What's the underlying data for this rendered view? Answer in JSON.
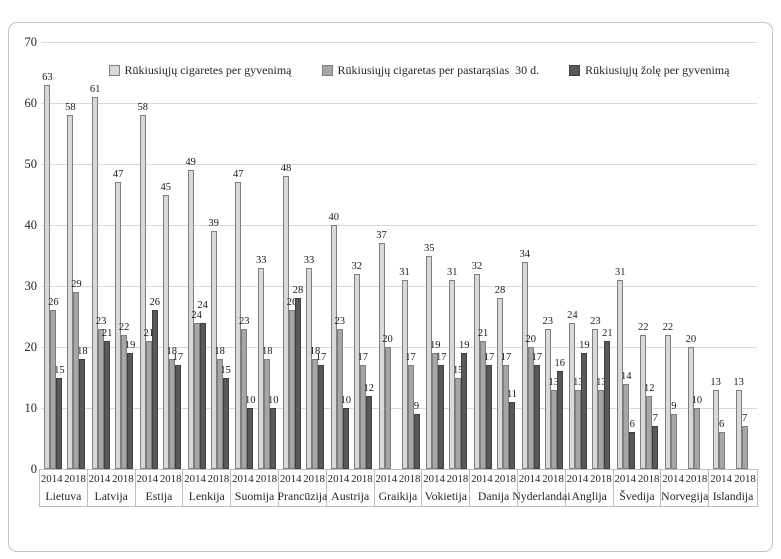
{
  "figure": {
    "background_color": "#ffffff",
    "frame_border_color": "#c3c3c3",
    "gridline_color": "#d9d9d9",
    "axis_line_color": "#bfbfbf",
    "text_color": "#262626"
  },
  "chart_data": {
    "type": "bar",
    "title": "",
    "xlabel": "",
    "ylabel": "",
    "ylim": [
      0,
      70
    ],
    "yticks": [
      0,
      10,
      20,
      30,
      40,
      50,
      60,
      70
    ],
    "grid": "horizontal",
    "legend_position": "top-center-inside",
    "data_labels": true,
    "year_labels": [
      "2014",
      "2018"
    ],
    "series": [
      {
        "name": "Rūkiusiųjų cigaretes per gyvenimą",
        "fill": "#d9d9d9",
        "border": "#7f7f7f"
      },
      {
        "name": "Rūkiusiųjų cigaretas per pastarąsias  30 d.",
        "fill": "#a6a6a6",
        "border": "#7f7f7f"
      },
      {
        "name": "Rūkiusiųjų žolę per gyvenimą",
        "fill": "#595959",
        "border": "#3f3f3f"
      }
    ],
    "countries": [
      {
        "name": "Lietuva",
        "values_2014": [
          63,
          26,
          15
        ],
        "values_2018": [
          58,
          29,
          18
        ]
      },
      {
        "name": "Latvija",
        "values_2014": [
          61,
          23,
          21
        ],
        "values_2018": [
          47,
          22,
          19
        ]
      },
      {
        "name": "Estija",
        "values_2014": [
          58,
          21,
          26
        ],
        "values_2018": [
          45,
          18,
          17
        ]
      },
      {
        "name": "Lenkija",
        "values_2014": [
          49,
          24,
          24
        ],
        "values_2018": [
          39,
          18,
          15
        ]
      },
      {
        "name": "Suomija",
        "values_2014": [
          47,
          23,
          10
        ],
        "values_2018": [
          33,
          18,
          10
        ]
      },
      {
        "name": "Prancūzija",
        "values_2014": [
          48,
          26,
          28
        ],
        "values_2018": [
          33,
          18,
          17
        ]
      },
      {
        "name": "Austrija",
        "values_2014": [
          40,
          23,
          10
        ],
        "values_2018": [
          32,
          17,
          12
        ]
      },
      {
        "name": "Graikija",
        "values_2014": [
          37,
          20,
          null
        ],
        "values_2018": [
          31,
          17,
          9
        ]
      },
      {
        "name": "Vokietija",
        "values_2014": [
          35,
          19,
          17
        ],
        "values_2018": [
          31,
          15,
          19
        ]
      },
      {
        "name": "Danija",
        "values_2014": [
          32,
          21,
          17
        ],
        "values_2018": [
          28,
          17,
          11
        ]
      },
      {
        "name": "Nyderlandai",
        "values_2014": [
          34,
          20,
          17
        ],
        "values_2018": [
          23,
          13,
          16
        ]
      },
      {
        "name": "Anglija",
        "values_2014": [
          24,
          13,
          19
        ],
        "values_2018": [
          23,
          13,
          21
        ]
      },
      {
        "name": "Švedija",
        "values_2014": [
          31,
          14,
          6
        ],
        "values_2018": [
          22,
          12,
          7
        ]
      },
      {
        "name": "Norvegija",
        "values_2014": [
          22,
          9,
          null
        ],
        "values_2018": [
          20,
          10,
          null
        ]
      },
      {
        "name": "Islandija",
        "values_2014": [
          13,
          6,
          null
        ],
        "values_2018": [
          13,
          7,
          null
        ]
      }
    ]
  }
}
